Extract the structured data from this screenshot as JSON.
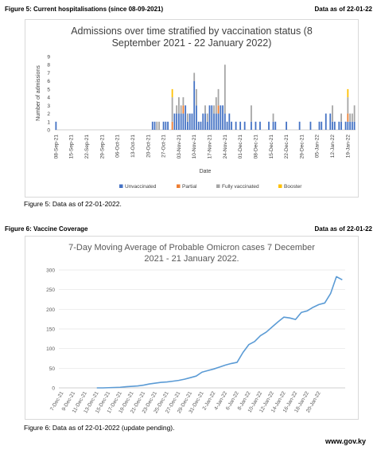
{
  "figure5": {
    "header_left": "Figure 5: Current hospitalisations (since 08-09-2021)",
    "header_right": "Data as of 22-01-22",
    "caption": "Figure 5: Data as of 22-01-2022.",
    "colors": {
      "Unvaccinated": "#4472c4",
      "Partial": "#ed7d31",
      "Fully vaccinated": "#a5a5a5",
      "Booster": "#ffc000"
    },
    "chart_data": {
      "type": "bar",
      "stacked": true,
      "title": "Admissions over time stratified by vaccination status (8 September 2021 - 22 January 2022)",
      "title_lines": [
        "Admissions over time stratified by vaccination status (8",
        "September 2021 - 22 January 2022)"
      ],
      "xlabel": "Date",
      "ylabel": "Number of admissions",
      "ylim": [
        0,
        9
      ],
      "yticks": [
        0,
        1,
        2,
        3,
        4,
        5,
        6,
        7,
        8,
        9
      ],
      "start_date": "2021-09-08",
      "end_date": "2022-01-22",
      "xticks": [
        "08-Sep-21",
        "15-Sep-21",
        "22-Sep-21",
        "29-Sep-21",
        "06-Oct-21",
        "13-Oct-21",
        "20-Oct-21",
        "27-Oct-21",
        "03-Nov-21",
        "10-Nov-21",
        "17-Nov-21",
        "24-Nov-21",
        "01-Dec-21",
        "08-Dec-21",
        "15-Dec-21",
        "22-Dec-21",
        "29-Dec-21",
        "05-Jan-22",
        "12-Jan-22",
        "19-Jan-22"
      ],
      "legend_position": "bottom",
      "grid": false,
      "series": [
        {
          "name": "Unvaccinated",
          "points": [
            [
              "2021-09-08",
              1
            ],
            [
              "2021-10-22",
              1
            ],
            [
              "2021-10-23",
              1
            ],
            [
              "2021-10-27",
              1
            ],
            [
              "2021-10-28",
              1
            ],
            [
              "2021-10-29",
              1
            ],
            [
              "2021-11-01",
              2
            ],
            [
              "2021-11-02",
              2
            ],
            [
              "2021-11-03",
              2
            ],
            [
              "2021-11-04",
              2
            ],
            [
              "2021-11-05",
              2
            ],
            [
              "2021-11-06",
              3
            ],
            [
              "2021-11-07",
              1
            ],
            [
              "2021-11-08",
              2
            ],
            [
              "2021-11-09",
              2
            ],
            [
              "2021-11-10",
              6
            ],
            [
              "2021-11-11",
              3
            ],
            [
              "2021-11-12",
              1
            ],
            [
              "2021-11-13",
              1
            ],
            [
              "2021-11-14",
              2
            ],
            [
              "2021-11-15",
              2
            ],
            [
              "2021-11-16",
              1
            ],
            [
              "2021-11-17",
              3
            ],
            [
              "2021-11-18",
              3
            ],
            [
              "2021-11-19",
              2
            ],
            [
              "2021-11-20",
              2
            ],
            [
              "2021-11-21",
              2
            ],
            [
              "2021-11-22",
              3
            ],
            [
              "2021-11-23",
              3
            ],
            [
              "2021-11-24",
              2
            ],
            [
              "2021-11-25",
              1
            ],
            [
              "2021-11-26",
              2
            ],
            [
              "2021-11-27",
              1
            ],
            [
              "2021-11-29",
              1
            ],
            [
              "2021-12-01",
              1
            ],
            [
              "2021-12-03",
              1
            ],
            [
              "2021-12-06",
              1
            ],
            [
              "2021-12-08",
              1
            ],
            [
              "2021-12-10",
              1
            ],
            [
              "2021-12-14",
              1
            ],
            [
              "2021-12-16",
              1
            ],
            [
              "2021-12-17",
              1
            ],
            [
              "2021-12-22",
              1
            ],
            [
              "2021-12-28",
              1
            ],
            [
              "2022-01-02",
              1
            ],
            [
              "2022-01-06",
              1
            ],
            [
              "2022-01-07",
              1
            ],
            [
              "2022-01-09",
              2
            ],
            [
              "2022-01-11",
              2
            ],
            [
              "2022-01-12",
              1
            ],
            [
              "2022-01-13",
              1
            ],
            [
              "2022-01-15",
              1
            ],
            [
              "2022-01-16",
              1
            ],
            [
              "2022-01-18",
              1
            ],
            [
              "2022-01-19",
              1
            ],
            [
              "2022-01-20",
              1
            ],
            [
              "2022-01-21",
              1
            ],
            [
              "2022-01-22",
              1
            ]
          ]
        },
        {
          "name": "Partial",
          "points": [
            [
              "2021-10-31",
              1
            ],
            [
              "2021-11-05",
              1
            ],
            [
              "2021-11-21",
              1
            ],
            [
              "2022-01-19",
              1
            ]
          ]
        },
        {
          "name": "Fully vaccinated",
          "points": [
            [
              "2021-10-24",
              1
            ],
            [
              "2021-10-25",
              1
            ],
            [
              "2021-10-31",
              3
            ],
            [
              "2021-11-02",
              1
            ],
            [
              "2021-11-03",
              2
            ],
            [
              "2021-11-04",
              1
            ],
            [
              "2021-11-05",
              1
            ],
            [
              "2021-11-07",
              1
            ],
            [
              "2021-11-10",
              1
            ],
            [
              "2021-11-11",
              2
            ],
            [
              "2021-11-15",
              1
            ],
            [
              "2021-11-16",
              1
            ],
            [
              "2021-11-19",
              1
            ],
            [
              "2021-11-20",
              2
            ],
            [
              "2021-11-21",
              2
            ],
            [
              "2021-11-24",
              6
            ],
            [
              "2021-12-06",
              2
            ],
            [
              "2021-12-16",
              1
            ],
            [
              "2022-01-12",
              2
            ],
            [
              "2022-01-16",
              1
            ],
            [
              "2022-01-19",
              2
            ],
            [
              "2022-01-20",
              1
            ],
            [
              "2022-01-21",
              1
            ],
            [
              "2022-01-22",
              2
            ]
          ]
        },
        {
          "name": "Booster",
          "points": [
            [
              "2021-10-31",
              1
            ],
            [
              "2022-01-19",
              1
            ]
          ]
        }
      ]
    }
  },
  "figure6": {
    "header_left": "Figure 6: Vaccine Coverage",
    "header_right": "Data as of 22-01-22",
    "caption": "Figure 6: Data as of 22-01-2022 (update pending).",
    "line_color": "#5b9bd5",
    "chart_data": {
      "type": "line",
      "title": "7-Day Moving Average of Probable Omicron cases 7 December 2021 - 21 January 2022.",
      "title_lines": [
        "7-Day Moving Average of Probable Omicron cases 7 December",
        "2021 - 21 January 2022."
      ],
      "xlabel": "",
      "ylabel": "",
      "ylim": [
        0,
        300
      ],
      "yticks": [
        0,
        50,
        100,
        150,
        200,
        250,
        300
      ],
      "grid": true,
      "start_date": "2021-12-07",
      "xticks": [
        "7-Dec-21",
        "9-Dec-21",
        "11-Dec-21",
        "13-Dec-21",
        "15-Dec-21",
        "17-Dec-21",
        "19-Dec-21",
        "21-Dec-21",
        "23-Dec-21",
        "25-Dec-21",
        "27-Dec-21",
        "29-Dec-21",
        "31-Dec-21",
        "2-Jan-22",
        "4-Jan-22",
        "6-Jan-22",
        "8-Jan-22",
        "10-Jan-22",
        "12-Jan-22",
        "14-Jan-22",
        "16-Jan-22",
        "18-Jan-22",
        "20-Jan-22"
      ],
      "series": [
        {
          "points": [
            [
              "2021-12-13",
              0
            ],
            [
              "2021-12-14",
              0
            ],
            [
              "2021-12-15",
              0.5
            ],
            [
              "2021-12-16",
              1
            ],
            [
              "2021-12-17",
              1.5
            ],
            [
              "2021-12-18",
              3
            ],
            [
              "2021-12-19",
              4
            ],
            [
              "2021-12-20",
              5
            ],
            [
              "2021-12-21",
              7
            ],
            [
              "2021-12-22",
              10
            ],
            [
              "2021-12-23",
              12
            ],
            [
              "2021-12-24",
              14
            ],
            [
              "2021-12-25",
              15
            ],
            [
              "2021-12-26",
              17
            ],
            [
              "2021-12-27",
              19
            ],
            [
              "2021-12-28",
              22
            ],
            [
              "2021-12-29",
              26
            ],
            [
              "2021-12-30",
              30
            ],
            [
              "2021-12-31",
              40
            ],
            [
              "2022-01-01",
              44
            ],
            [
              "2022-01-02",
              48
            ],
            [
              "2022-01-03",
              53
            ],
            [
              "2022-01-04",
              58
            ],
            [
              "2022-01-05",
              62
            ],
            [
              "2022-01-06",
              65
            ],
            [
              "2022-01-07",
              90
            ],
            [
              "2022-01-08",
              110
            ],
            [
              "2022-01-09",
              118
            ],
            [
              "2022-01-10",
              133
            ],
            [
              "2022-01-11",
              142
            ],
            [
              "2022-01-12",
              155
            ],
            [
              "2022-01-13",
              168
            ],
            [
              "2022-01-14",
              180
            ],
            [
              "2022-01-15",
              178
            ],
            [
              "2022-01-16",
              174
            ],
            [
              "2022-01-17",
              192
            ],
            [
              "2022-01-18",
              196
            ],
            [
              "2022-01-19",
              205
            ],
            [
              "2022-01-20",
              212
            ],
            [
              "2022-01-21",
              216
            ],
            [
              "2022-01-22",
              240
            ],
            [
              "2022-01-23",
              283
            ],
            [
              "2022-01-24",
              275
            ]
          ]
        }
      ]
    }
  },
  "footer": {
    "site": "www.gov.ky"
  }
}
